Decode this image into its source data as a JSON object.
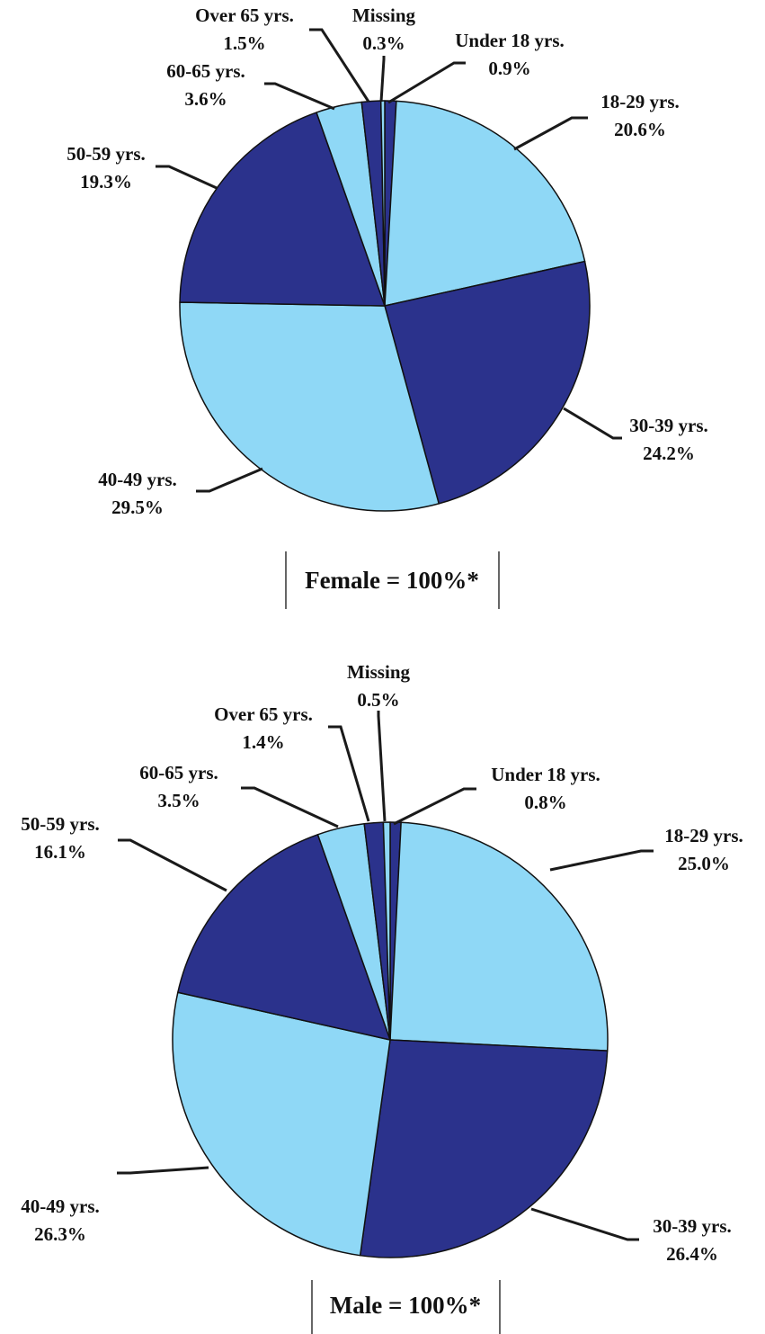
{
  "colors": {
    "light_blue": "#8fd8f6",
    "dark_blue": "#2b328c",
    "stroke": "#111111",
    "leader": "#1a1a1a"
  },
  "chart_data": [
    {
      "type": "pie",
      "total_label": "Female = 100%*",
      "slices": [
        {
          "name": "Under 18 yrs.",
          "value": 0.9,
          "value_label": "0.9%",
          "color": "dark_blue"
        },
        {
          "name": "18-29 yrs.",
          "value": 20.6,
          "value_label": "20.6%",
          "color": "light_blue"
        },
        {
          "name": "30-39 yrs.",
          "value": 24.2,
          "value_label": "24.2%",
          "color": "dark_blue"
        },
        {
          "name": "40-49 yrs.",
          "value": 29.5,
          "value_label": "29.5%",
          "color": "light_blue"
        },
        {
          "name": "50-59 yrs.",
          "value": 19.3,
          "value_label": "19.3%",
          "color": "dark_blue"
        },
        {
          "name": "60-65 yrs.",
          "value": 3.6,
          "value_label": "3.6%",
          "color": "light_blue"
        },
        {
          "name": "Over 65 yrs.",
          "value": 1.5,
          "value_label": "1.5%",
          "color": "dark_blue"
        },
        {
          "name": "Missing",
          "value": 0.3,
          "value_label": "0.3%",
          "color": "light_blue"
        }
      ]
    },
    {
      "type": "pie",
      "total_label": "Male = 100%*",
      "slices": [
        {
          "name": "Under 18 yrs.",
          "value": 0.8,
          "value_label": "0.8%",
          "color": "dark_blue"
        },
        {
          "name": "18-29 yrs.",
          "value": 25.0,
          "value_label": "25.0%",
          "color": "light_blue"
        },
        {
          "name": "30-39 yrs.",
          "value": 26.4,
          "value_label": "26.4%",
          "color": "dark_blue"
        },
        {
          "name": "40-49 yrs.",
          "value": 26.3,
          "value_label": "26.3%",
          "color": "light_blue"
        },
        {
          "name": "50-59 yrs.",
          "value": 16.1,
          "value_label": "16.1%",
          "color": "dark_blue"
        },
        {
          "name": "60-65 yrs.",
          "value": 3.5,
          "value_label": "3.5%",
          "color": "light_blue"
        },
        {
          "name": "Over 65 yrs.",
          "value": 1.4,
          "value_label": "1.4%",
          "color": "dark_blue"
        },
        {
          "name": "Missing",
          "value": 0.5,
          "value_label": "0.5%",
          "color": "light_blue"
        }
      ]
    }
  ]
}
